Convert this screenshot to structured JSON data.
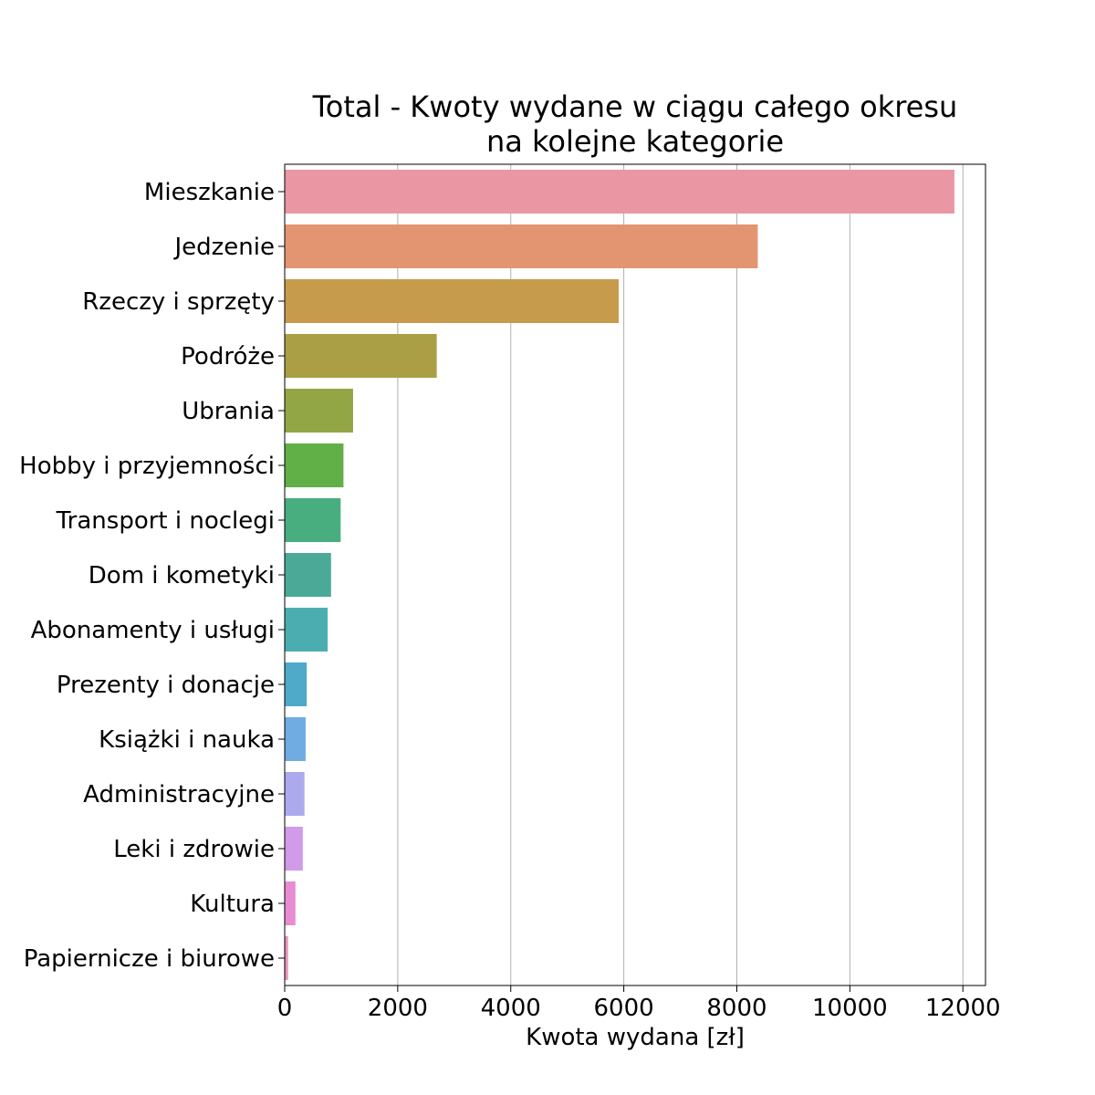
{
  "chart_data": {
    "type": "bar",
    "orientation": "horizontal",
    "title_lines": [
      "Total - Kwoty wydane w ciągu całego okresu",
      "na kolejne kategorie"
    ],
    "xlabel": "Kwota wydana [zł]",
    "ylabel": "",
    "xlim": [
      0,
      12400
    ],
    "xticks": [
      0,
      2000,
      4000,
      6000,
      8000,
      10000,
      12000
    ],
    "grid": "vertical",
    "categories": [
      "Mieszkanie",
      "Jedzenie",
      "Rzeczy i sprzęty",
      "Podróże",
      "Ubrania",
      "Hobby i przyjemności",
      "Transport i noclegi",
      "Dom i kometyki",
      "Abonamenty i usługi",
      "Prezenty i donacje",
      "Książki i nauka",
      "Administracyjne",
      "Leki i zdrowie",
      "Kultura",
      "Papiernicze i biurowe"
    ],
    "values": [
      11850,
      8370,
      5910,
      2690,
      1210,
      1040,
      990,
      820,
      760,
      390,
      370,
      350,
      320,
      190,
      60
    ],
    "colors": [
      "#ea96a3",
      "#e39572",
      "#c79b4c",
      "#aa9f45",
      "#93a645",
      "#61af47",
      "#48ae7f",
      "#4aaa97",
      "#4cadb0",
      "#4eaac8",
      "#70abe1",
      "#acaaec",
      "#d09be8",
      "#e88cd3",
      "#e895bd"
    ]
  }
}
